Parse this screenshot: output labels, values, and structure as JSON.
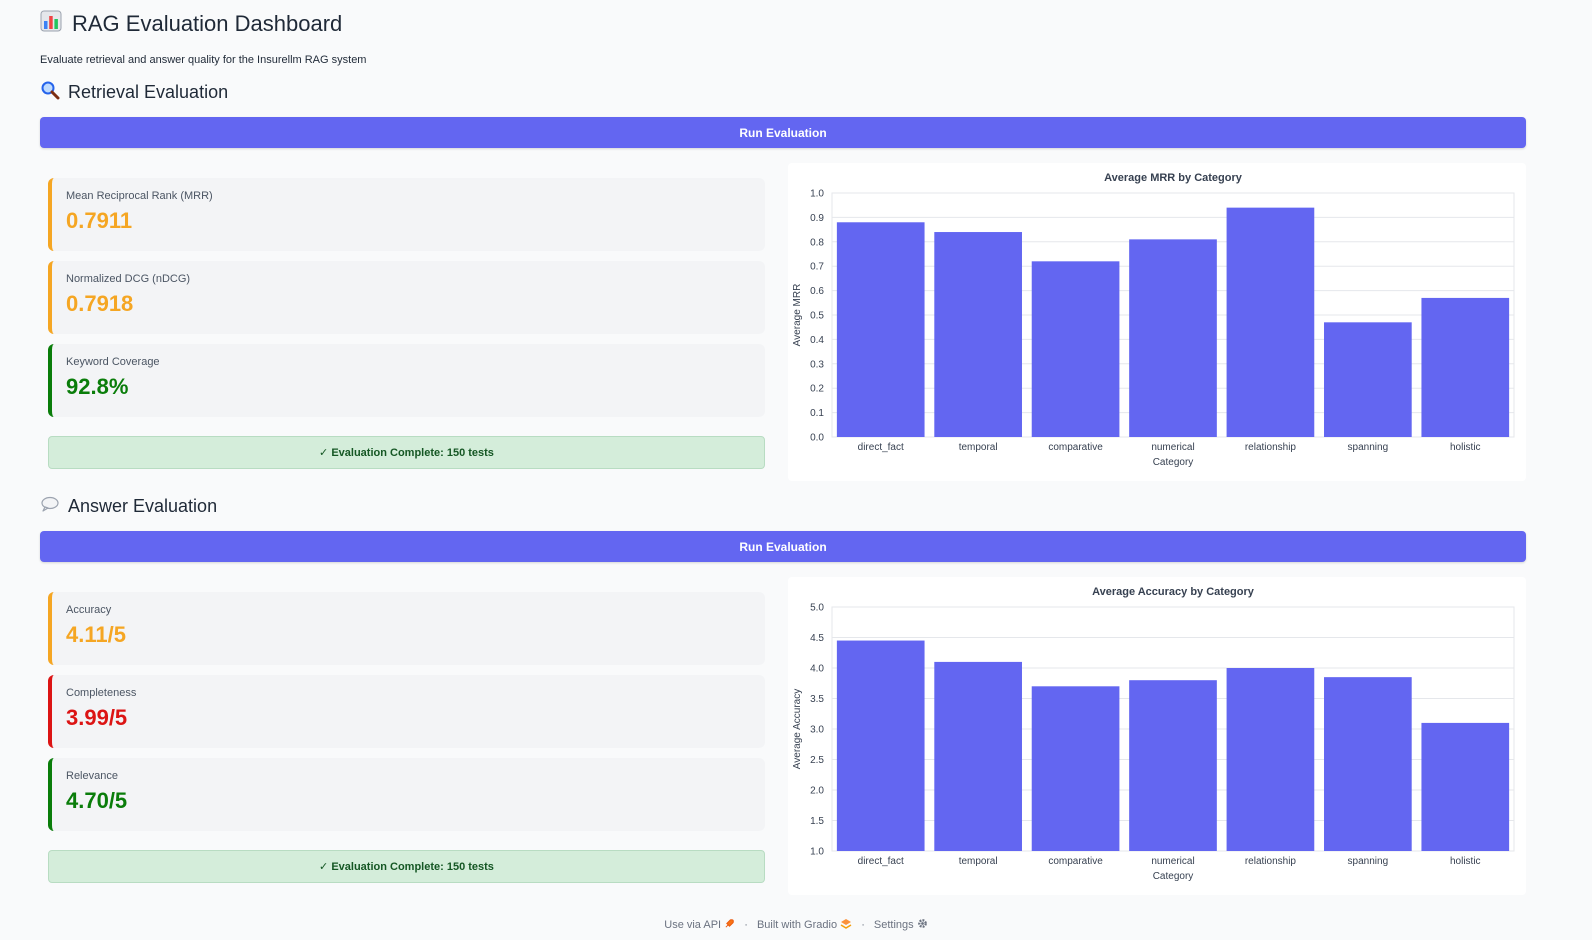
{
  "header": {
    "title_icon": "bar-chart-icon",
    "title": "RAG Evaluation Dashboard",
    "subtitle": "Evaluate retrieval and answer quality for the Insurellm RAG system"
  },
  "retrieval": {
    "title_icon": "magnifier-icon",
    "title": "Retrieval Evaluation",
    "button_label": "Run Evaluation",
    "metrics": [
      {
        "label": "Mean Reciprocal Rank (MRR)",
        "value": "0.7911",
        "color": "#f5a623"
      },
      {
        "label": "Normalized DCG (nDCG)",
        "value": "0.7918",
        "color": "#f5a623"
      },
      {
        "label": "Keyword Coverage",
        "value": "92.8%",
        "color": "#0a7d0a"
      }
    ],
    "status": "✓ Evaluation Complete: 150 tests"
  },
  "answer": {
    "title_icon": "speech-bubble-icon",
    "title": "Answer Evaluation",
    "button_label": "Run Evaluation",
    "metrics": [
      {
        "label": "Accuracy",
        "value": "4.11/5",
        "color": "#f5a623"
      },
      {
        "label": "Completeness",
        "value": "3.99/5",
        "color": "#dc1414"
      },
      {
        "label": "Relevance",
        "value": "4.70/5",
        "color": "#0a7d0a"
      }
    ],
    "status": "✓ Evaluation Complete: 150 tests"
  },
  "chart_data": [
    {
      "type": "bar",
      "title": "Average MRR by Category",
      "xlabel": "Category",
      "ylabel": "Average MRR",
      "categories": [
        "direct_fact",
        "temporal",
        "comparative",
        "numerical",
        "relationship",
        "spanning",
        "holistic"
      ],
      "values": [
        0.88,
        0.84,
        0.72,
        0.81,
        0.94,
        0.47,
        0.57
      ],
      "ylim": [
        0,
        1.0
      ],
      "yticks": [
        "0.0",
        "0.1",
        "0.2",
        "0.3",
        "0.4",
        "0.5",
        "0.6",
        "0.7",
        "0.8",
        "0.9",
        "1.0"
      ],
      "bar_color": "#6366f1",
      "grid": true
    },
    {
      "type": "bar",
      "title": "Average Accuracy by Category",
      "xlabel": "Category",
      "ylabel": "Average Accuracy",
      "categories": [
        "direct_fact",
        "temporal",
        "comparative",
        "numerical",
        "relationship",
        "spanning",
        "holistic"
      ],
      "values": [
        4.45,
        4.1,
        3.7,
        3.8,
        4.0,
        3.85,
        3.1
      ],
      "ylim": [
        1.0,
        5.0
      ],
      "yticks": [
        "1.0",
        "1.5",
        "2.0",
        "2.5",
        "3.0",
        "3.5",
        "4.0",
        "4.5",
        "5.0"
      ],
      "bar_color": "#6366f1",
      "grid": true
    }
  ],
  "footer": {
    "api_label": "Use via API",
    "api_icon": "rocket-icon",
    "built_label": "Built with Gradio",
    "built_icon": "gradio-logo-icon",
    "settings_label": "Settings",
    "settings_icon": "gear-icon",
    "separator": "·"
  }
}
